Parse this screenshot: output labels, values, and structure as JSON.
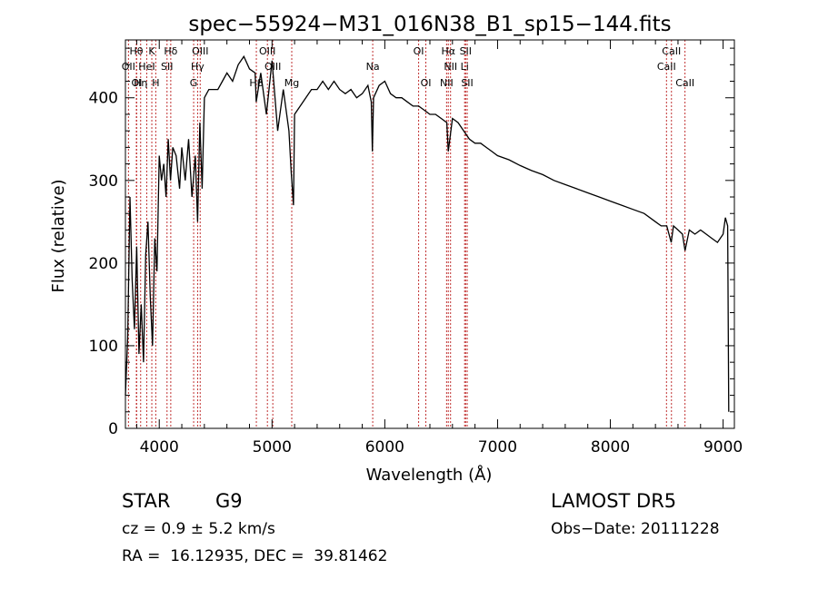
{
  "chart_data": {
    "type": "line",
    "title": "spec−55924−M31_016N38_B1_sp15−144.fits",
    "xlabel": "Wavelength (Å)",
    "ylabel": "Flux (relative)",
    "xlim": [
      3700,
      9100
    ],
    "ylim": [
      0,
      470
    ],
    "x_ticks": [
      4000,
      5000,
      6000,
      7000,
      8000,
      9000
    ],
    "y_ticks": [
      0,
      100,
      200,
      300,
      400
    ],
    "grid": false,
    "series": [
      {
        "x": [
          3700,
          3720,
          3740,
          3760,
          3780,
          3800,
          3820,
          3840,
          3860,
          3880,
          3900,
          3920,
          3940,
          3960,
          3980,
          4000,
          4020,
          4040,
          4060,
          4080,
          4100,
          4120,
          4150,
          4180,
          4200,
          4230,
          4260,
          4290,
          4320,
          4340,
          4360,
          4380,
          4400,
          4440,
          4480,
          4520,
          4560,
          4600,
          4650,
          4700,
          4750,
          4800,
          4850,
          4860,
          4900,
          4950,
          5000,
          5050,
          5100,
          5150,
          5170,
          5190,
          5200,
          5250,
          5300,
          5350,
          5400,
          5450,
          5500,
          5550,
          5600,
          5650,
          5700,
          5750,
          5800,
          5850,
          5880,
          5890,
          5900,
          5950,
          6000,
          6050,
          6100,
          6150,
          6200,
          6250,
          6300,
          6350,
          6400,
          6450,
          6500,
          6550,
          6563,
          6600,
          6650,
          6700,
          6750,
          6800,
          6850,
          6900,
          6950,
          7000,
          7100,
          7200,
          7300,
          7400,
          7500,
          7600,
          7700,
          7800,
          7900,
          8000,
          8100,
          8200,
          8300,
          8400,
          8450,
          8500,
          8540,
          8560,
          8600,
          8640,
          8662,
          8700,
          8750,
          8800,
          8850,
          8900,
          8950,
          9000,
          9020,
          9040,
          9050
        ],
        "y": [
          40,
          110,
          280,
          180,
          120,
          220,
          90,
          150,
          80,
          210,
          250,
          160,
          100,
          230,
          190,
          330,
          300,
          320,
          280,
          350,
          300,
          340,
          330,
          290,
          340,
          300,
          350,
          280,
          330,
          250,
          370,
          290,
          400,
          410,
          410,
          410,
          420,
          430,
          420,
          440,
          450,
          435,
          430,
          395,
          430,
          380,
          445,
          360,
          410,
          360,
          310,
          270,
          380,
          390,
          400,
          410,
          410,
          420,
          410,
          420,
          410,
          405,
          410,
          400,
          405,
          415,
          395,
          335,
          400,
          415,
          420,
          405,
          400,
          400,
          395,
          390,
          390,
          385,
          380,
          380,
          375,
          370,
          335,
          375,
          370,
          360,
          350,
          345,
          345,
          340,
          335,
          330,
          325,
          318,
          312,
          307,
          300,
          295,
          290,
          285,
          280,
          275,
          270,
          265,
          260,
          250,
          245,
          245,
          225,
          245,
          240,
          235,
          215,
          240,
          235,
          240,
          235,
          230,
          225,
          235,
          255,
          245,
          20
        ]
      }
    ],
    "line_markers": [
      {
        "label": "Hθ",
        "x": 3797,
        "row": 0
      },
      {
        "label": "K",
        "x": 3934,
        "row": 0
      },
      {
        "label": "Hδ",
        "x": 4102,
        "row": 0
      },
      {
        "label": "OIII",
        "x": 4363,
        "row": 0
      },
      {
        "label": "OIII",
        "x": 4959,
        "row": 0
      },
      {
        "label": "OI",
        "x": 6300,
        "row": 0
      },
      {
        "label": "Hα",
        "x": 6563,
        "row": 0
      },
      {
        "label": "SII",
        "x": 6717,
        "row": 0
      },
      {
        "label": "CaII",
        "x": 8542,
        "row": 0
      },
      {
        "label": "OII",
        "x": 3727,
        "row": 1
      },
      {
        "label": "HeI",
        "x": 3889,
        "row": 1
      },
      {
        "label": "SII",
        "x": 4069,
        "row": 1
      },
      {
        "label": "Hγ",
        "x": 4340,
        "row": 1
      },
      {
        "label": "OIII",
        "x": 5007,
        "row": 1
      },
      {
        "label": "Na",
        "x": 5893,
        "row": 1
      },
      {
        "label": "NII",
        "x": 6583,
        "row": 1
      },
      {
        "label": "Li",
        "x": 6708,
        "row": 1
      },
      {
        "label": "CaII",
        "x": 8498,
        "row": 1
      },
      {
        "label": "OI",
        "x": 3800,
        "row": 2
      },
      {
        "label": "Hη",
        "x": 3835,
        "row": 2
      },
      {
        "label": "H",
        "x": 3969,
        "row": 2
      },
      {
        "label": "G",
        "x": 4305,
        "row": 2
      },
      {
        "label": "Hβ",
        "x": 4861,
        "row": 2
      },
      {
        "label": "Mg",
        "x": 5175,
        "row": 2
      },
      {
        "label": "OI",
        "x": 6364,
        "row": 2
      },
      {
        "label": "NII",
        "x": 6548,
        "row": 2
      },
      {
        "label": "SII",
        "x": 6731,
        "row": 2
      },
      {
        "label": "CaII",
        "x": 8662,
        "row": 2
      }
    ],
    "line_marker_color": "#c03030"
  },
  "info": {
    "object_class": "STAR",
    "subclass": "G9",
    "survey": "LAMOST DR5",
    "cz": "cz = 0.9 ± 5.2 km/s",
    "obs_date": "Obs−Date: 20111228",
    "coords": "RA =  16.12935, DEC =  39.81462"
  }
}
